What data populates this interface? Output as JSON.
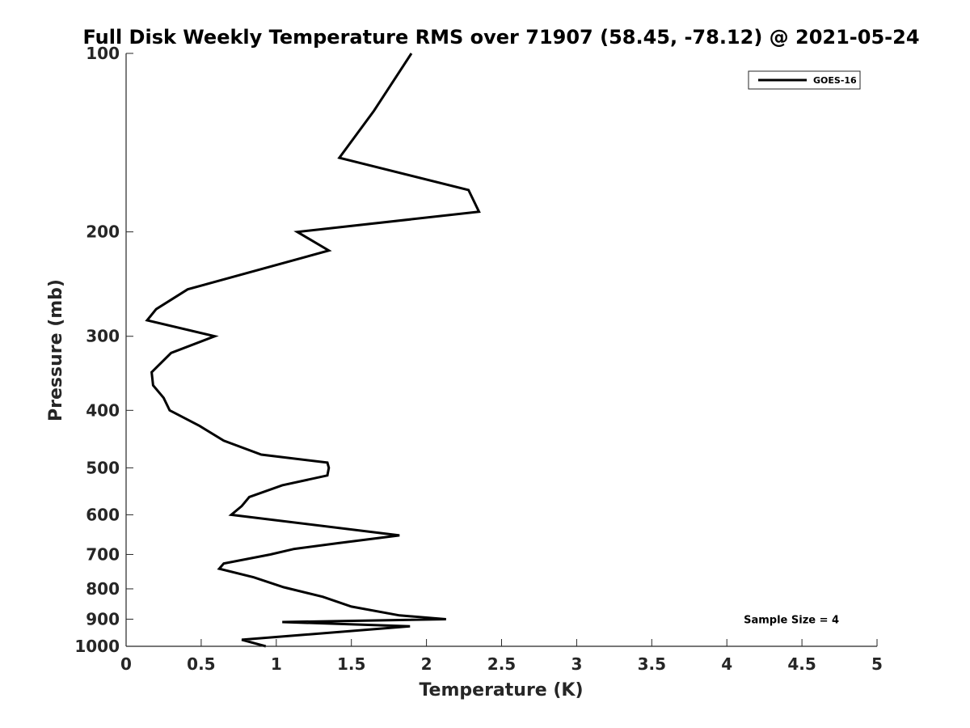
{
  "chart_data": {
    "type": "line",
    "title": "Full Disk Weekly Temperature RMS over 71907 (58.45, -78.12) @ 2021-05-24",
    "xlabel": "Temperature (K)",
    "ylabel": "Pressure (mb)",
    "xlim": [
      0,
      5
    ],
    "ylim": [
      1000,
      100
    ],
    "yscale": "log",
    "y_reversed": true,
    "grid": false,
    "legend_position": "top-right",
    "x_ticks": [
      0,
      0.5,
      1,
      1.5,
      2,
      2.5,
      3,
      3.5,
      4,
      4.5,
      5
    ],
    "x_tick_labels": [
      "0",
      "0.5",
      "1",
      "1.5",
      "2",
      "2.5",
      "3",
      "3.5",
      "4",
      "4.5",
      "5"
    ],
    "y_ticks": [
      100,
      200,
      300,
      400,
      500,
      600,
      700,
      800,
      900,
      1000
    ],
    "y_tick_labels": [
      "100",
      "200",
      "300",
      "400",
      "500",
      "600",
      "700",
      "800",
      "900",
      "1000"
    ],
    "series": [
      {
        "name": "GOES-16",
        "color": "#000000",
        "x": [
          1.9,
          1.65,
          1.42,
          2.28,
          2.35,
          1.14,
          1.35,
          0.41,
          0.2,
          0.14,
          0.59,
          0.3,
          0.17,
          0.18,
          0.25,
          0.29,
          0.49,
          0.65,
          0.9,
          1.34,
          1.35,
          1.34,
          1.04,
          0.82,
          0.77,
          0.7,
          1.82,
          1.41,
          1.12,
          0.96,
          0.65,
          0.62,
          0.85,
          1.05,
          1.31,
          1.5,
          1.82,
          2.13,
          1.04,
          1.89,
          0.77,
          0.93
        ],
        "y": [
          100,
          125,
          150,
          170,
          185,
          200,
          215,
          250,
          270,
          282,
          300,
          320,
          345,
          363,
          381,
          400,
          425,
          450,
          475,
          490,
          500,
          515,
          535,
          560,
          580,
          600,
          650,
          670,
          685,
          700,
          725,
          740,
          765,
          795,
          825,
          857,
          887,
          900,
          910,
          925,
          975,
          1000
        ]
      }
    ],
    "annotations": [
      {
        "text": "Sample Size = 4",
        "x": 4.43,
        "y": 900
      }
    ]
  }
}
